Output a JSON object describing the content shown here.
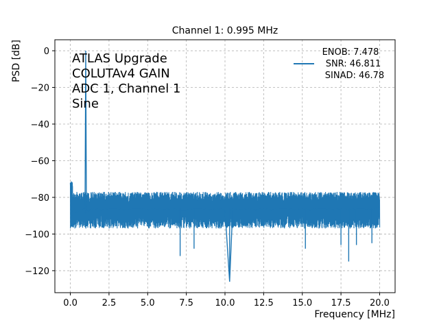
{
  "chart_data": {
    "type": "line",
    "title": "Channel 1: 0.995 MHz",
    "xlabel": "Frequency [MHz]",
    "ylabel": "PSD [dB]",
    "xlim": [
      -1.0,
      21.0
    ],
    "ylim": [
      -132,
      6
    ],
    "xticks": [
      0.0,
      2.5,
      5.0,
      7.5,
      10.0,
      12.5,
      15.0,
      17.5,
      20.0
    ],
    "xtick_labels": [
      "0.0",
      "2.5",
      "5.0",
      "7.5",
      "10.0",
      "12.5",
      "15.0",
      "17.5",
      "20.0"
    ],
    "yticks": [
      0,
      -20,
      -40,
      -60,
      -80,
      -100,
      -120
    ],
    "ytick_labels": [
      "0",
      "−20",
      "−40",
      "−60",
      "−80",
      "−100",
      "−120"
    ],
    "grid": true,
    "legend_position": "top-right",
    "annotation_lines": [
      "ATLAS Upgrade",
      "COLUTAv4 GAIN",
      "ADC 1, Channel 1",
      "Sine"
    ],
    "series": [
      {
        "name": "ENOB: 7.478\n SNR: 46.811\n SINAD: 46.78",
        "legend_lines": [
          "ENOB: 7.478",
          "SNR: 46.811",
          "SINAD: 46.78"
        ],
        "color": "#1f77b4",
        "x": [
          0.0,
          0.05,
          0.1,
          0.2,
          0.4,
          0.6,
          0.8,
          0.95,
          0.995,
          1.04,
          1.2,
          1.5,
          2.0,
          2.5,
          3.0,
          3.5,
          4.0,
          4.5,
          5.0,
          5.5,
          6.0,
          6.5,
          7.0,
          7.5,
          8.0,
          8.5,
          9.0,
          9.5,
          10.0,
          10.3,
          10.5,
          11.0,
          11.5,
          12.0,
          12.5,
          13.0,
          13.5,
          14.0,
          14.5,
          15.0,
          15.5,
          16.0,
          16.5,
          17.0,
          17.5,
          18.0,
          18.5,
          19.0,
          19.5,
          20.0
        ],
        "y": [
          -72,
          -85,
          -90,
          -86,
          -88,
          -87,
          -86,
          -88,
          0,
          -88,
          -87,
          -86,
          -87,
          -86,
          -86,
          -87,
          -86,
          -86,
          -87,
          -86,
          -87,
          -86,
          -87,
          -87,
          -86,
          -86,
          -87,
          -86,
          -87,
          -126,
          -86,
          -87,
          -86,
          -87,
          -86,
          -87,
          -86,
          -86,
          -87,
          -86,
          -87,
          -86,
          -86,
          -87,
          -86,
          -87,
          -86,
          -86,
          -87,
          -85
        ]
      }
    ],
    "noise_band": {
      "center": -86,
      "upper": -77,
      "lower": -97,
      "color": "#1f77b4"
    },
    "notable_dips": [
      {
        "x": 7.1,
        "y": -112
      },
      {
        "x": 8.0,
        "y": -108
      },
      {
        "x": 10.3,
        "y": -126
      },
      {
        "x": 15.2,
        "y": -108
      },
      {
        "x": 17.5,
        "y": -106
      },
      {
        "x": 18.0,
        "y": -115
      },
      {
        "x": 18.5,
        "y": -106
      },
      {
        "x": 19.5,
        "y": -105
      }
    ]
  }
}
